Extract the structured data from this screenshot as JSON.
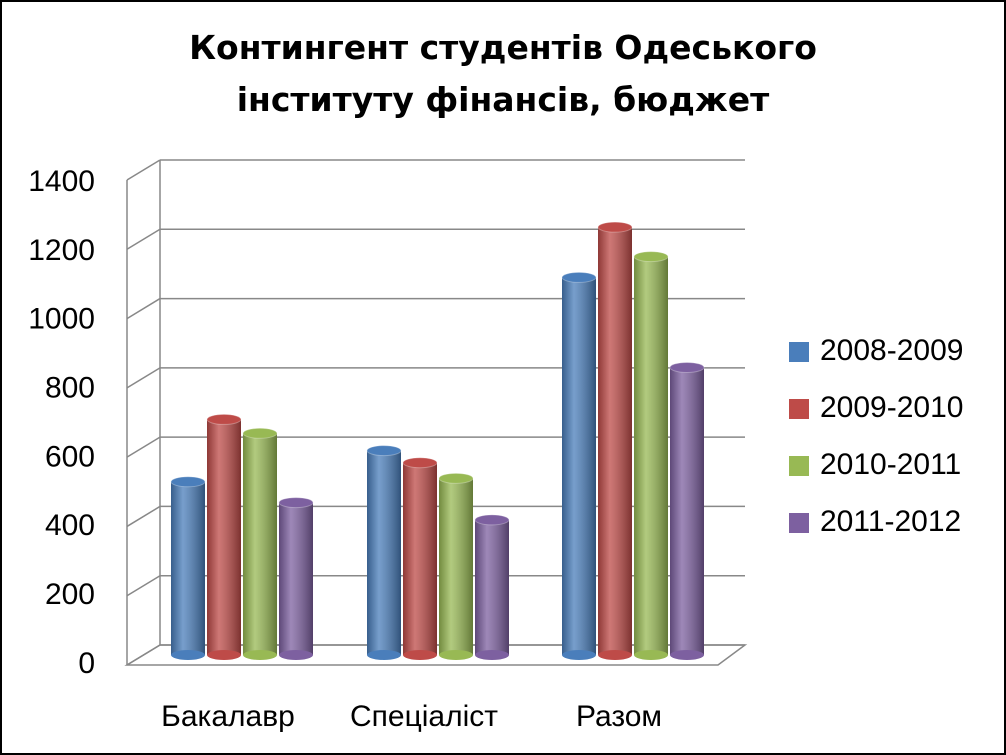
{
  "chart_data": {
    "type": "bar3d",
    "title": "Контингент студентів Одеського інституту фінансів, бюджет",
    "categories": [
      "Бакалавр",
      "Спеціаліст",
      "Разом"
    ],
    "series": [
      {
        "name": "2008-2009",
        "color": "#4a7ebb",
        "values": [
          500,
          590,
          1090
        ]
      },
      {
        "name": "2009-2010",
        "color": "#be4b48",
        "values": [
          680,
          555,
          1235
        ]
      },
      {
        "name": "2010-2011",
        "color": "#98b954",
        "values": [
          640,
          510,
          1150
        ]
      },
      {
        "name": "2011-2012",
        "color": "#7d60a0",
        "values": [
          440,
          390,
          830
        ]
      }
    ],
    "ylim": [
      0,
      1400
    ],
    "yticks": [
      0,
      200,
      400,
      600,
      800,
      1000,
      1200,
      1400
    ],
    "grid": true,
    "legend": "right"
  }
}
